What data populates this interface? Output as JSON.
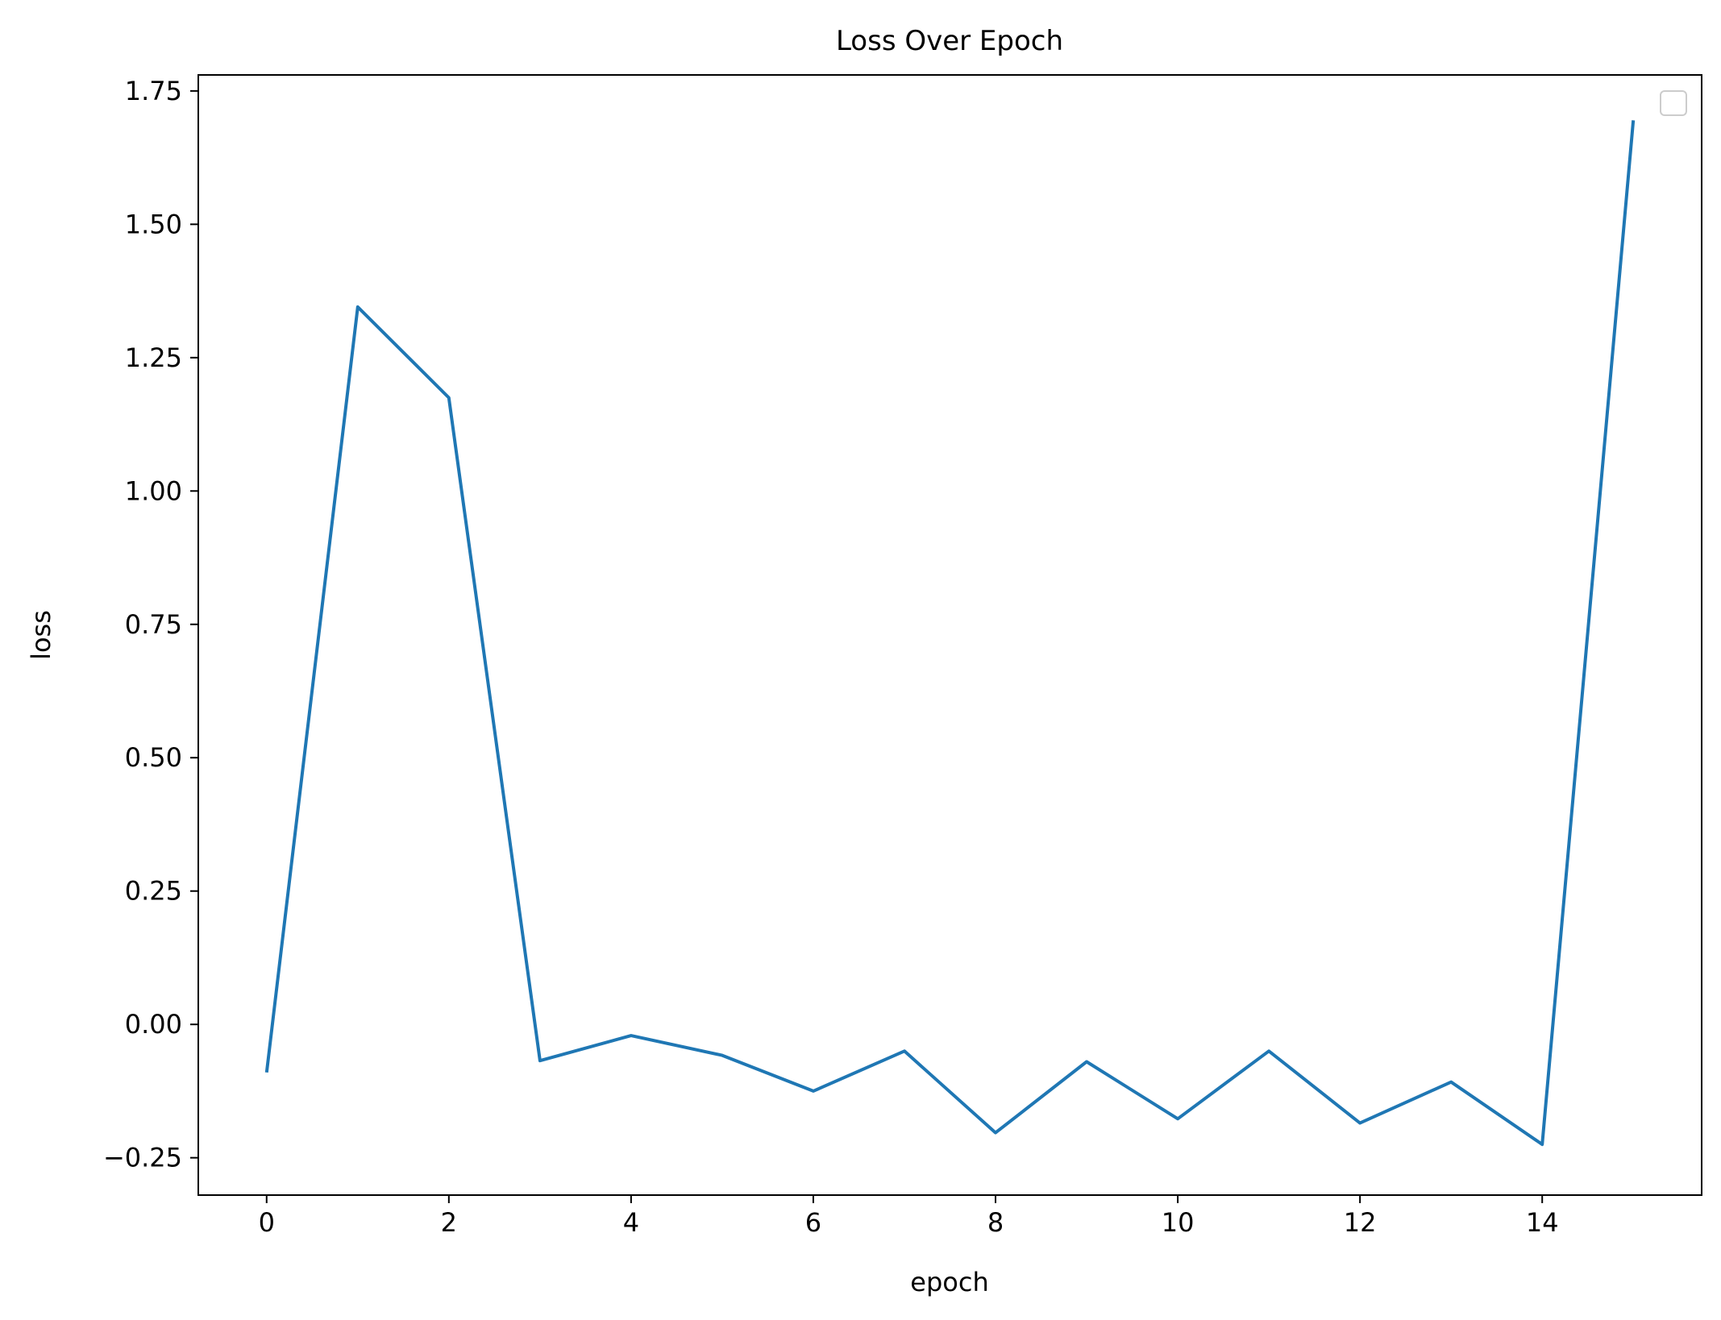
{
  "chart_data": {
    "type": "line",
    "title": "Loss Over Epoch",
    "xlabel": "epoch",
    "ylabel": "loss",
    "xlim": [
      -0.75,
      15.75
    ],
    "ylim": [
      -0.32,
      1.78
    ],
    "xticks": [
      0,
      2,
      4,
      6,
      8,
      10,
      12,
      14
    ],
    "xtick_labels": [
      "0",
      "2",
      "4",
      "6",
      "8",
      "10",
      "12",
      "14"
    ],
    "yticks": [
      -0.25,
      0.0,
      0.25,
      0.5,
      0.75,
      1.0,
      1.25,
      1.5,
      1.75
    ],
    "ytick_labels": [
      "−0.25",
      "0.00",
      "0.25",
      "0.50",
      "0.75",
      "1.00",
      "1.25",
      "1.50",
      "1.75"
    ],
    "grid": false,
    "legend": "upper right",
    "series": [
      {
        "color": "#1f77b4",
        "x": [
          0,
          1,
          2,
          3,
          4,
          5,
          6,
          7,
          8,
          9,
          10,
          11,
          12,
          13,
          14,
          15
        ],
        "y": [
          -0.09,
          1.345,
          1.175,
          -0.068,
          -0.021,
          -0.058,
          -0.125,
          -0.05,
          -0.203,
          -0.07,
          -0.177,
          -0.05,
          -0.185,
          -0.108,
          -0.225,
          1.695
        ]
      }
    ]
  }
}
